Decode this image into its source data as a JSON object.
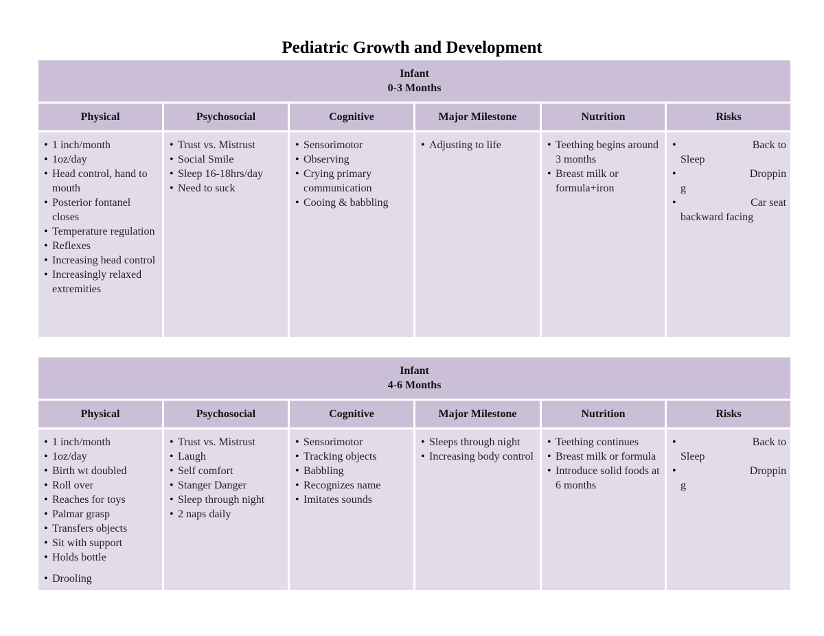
{
  "title": "Pediatric Growth and Development",
  "columns": [
    "Physical",
    "Psychosocial",
    "Cognitive",
    "Major Milestone",
    "Nutrition",
    "Risks"
  ],
  "sections": [
    {
      "stage": "Infant",
      "age": "0-3 Months",
      "physical": [
        "1 inch/month",
        "1oz/day",
        "Head control, hand to mouth",
        "Posterior fontanel closes",
        "Temperature regulation",
        "Reflexes",
        "Increasing head control",
        "Increasingly relaxed extremities"
      ],
      "psychosocial": [
        "Trust vs. Mistrust",
        "Social Smile",
        "Sleep 16-18hrs/day",
        "Need to suck"
      ],
      "cognitive": [
        "Sensorimotor",
        "Observing",
        "Crying primary communication",
        "Cooing & babbling"
      ],
      "milestone": [
        "Adjusting to life"
      ],
      "nutrition": [
        "Teething begins around 3 months",
        "Breast milk  or formula+iron"
      ],
      "risks": [
        {
          "first": "Back to",
          "rest": "Sleep"
        },
        {
          "first": "Droppin",
          "rest": "g"
        },
        {
          "first": "Car seat",
          "rest": "backward facing"
        }
      ]
    },
    {
      "stage": "Infant",
      "age": "4-6 Months",
      "physical": [
        "1 inch/month",
        "1oz/day",
        "Birth wt doubled",
        "Roll over",
        "Reaches for toys",
        "Palmar grasp",
        "Transfers objects",
        "Sit with support",
        "Holds bottle",
        "Drooling"
      ],
      "psychosocial": [
        "Trust vs. Mistrust",
        "Laugh",
        "Self comfort",
        "Stanger Danger",
        "Sleep through night",
        "2 naps daily"
      ],
      "cognitive": [
        "Sensorimotor",
        "Tracking objects",
        "Babbling",
        "Recognizes name",
        "Imitates sounds"
      ],
      "milestone": [
        "Sleeps through night",
        "Increasing body control"
      ],
      "nutrition": [
        "Teething continues",
        "Breast milk or formula",
        "Introduce solid foods at 6 months"
      ],
      "risks": [
        {
          "first": "Back to",
          "rest": "Sleep"
        },
        {
          "first": "Droppin",
          "rest": "g"
        }
      ]
    }
  ]
}
